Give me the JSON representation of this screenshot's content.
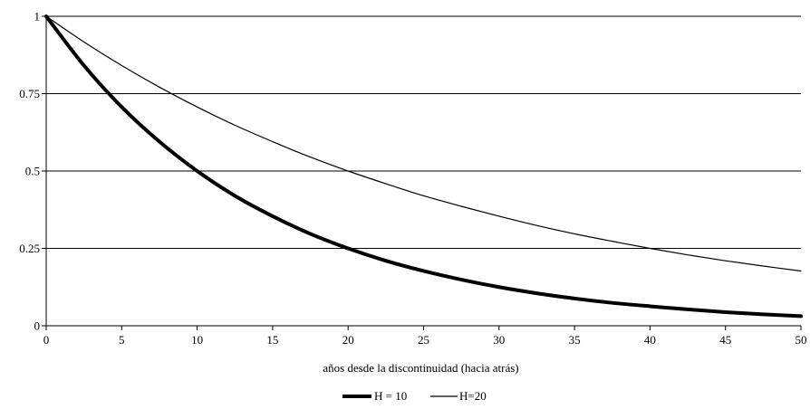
{
  "chart_data": {
    "type": "line",
    "title": "",
    "xlabel": "años desde la discontinuidad (hacia atrás)",
    "ylabel": "",
    "xlim": [
      0,
      50
    ],
    "ylim": [
      0,
      1
    ],
    "x_ticks": [
      "0",
      "5",
      "10",
      "15",
      "20",
      "25",
      "30",
      "35",
      "40",
      "45",
      "50"
    ],
    "y_ticks": [
      "0",
      "0.25",
      "0.5",
      "0.75",
      "1"
    ],
    "grid": "horizontal",
    "legend_position": "bottom",
    "x": [
      0,
      2.5,
      5,
      7.5,
      10,
      12.5,
      15,
      17.5,
      20,
      22.5,
      25,
      27.5,
      30,
      32.5,
      35,
      37.5,
      40,
      42.5,
      45,
      47.5,
      50
    ],
    "series": [
      {
        "name": "H = 10",
        "line_width": "thick",
        "color": "#000000",
        "values": [
          1,
          0.841,
          0.707,
          0.595,
          0.5,
          0.42,
          0.354,
          0.297,
          0.25,
          0.21,
          0.177,
          0.149,
          0.125,
          0.105,
          0.088,
          0.074,
          0.063,
          0.053,
          0.044,
          0.037,
          0.031
        ]
      },
      {
        "name": "H=20",
        "line_width": "thin",
        "color": "#000000",
        "values": [
          1,
          0.917,
          0.841,
          0.771,
          0.707,
          0.648,
          0.595,
          0.545,
          0.5,
          0.459,
          0.42,
          0.386,
          0.354,
          0.324,
          0.297,
          0.273,
          0.25,
          0.229,
          0.21,
          0.193,
          0.177
        ]
      }
    ]
  }
}
